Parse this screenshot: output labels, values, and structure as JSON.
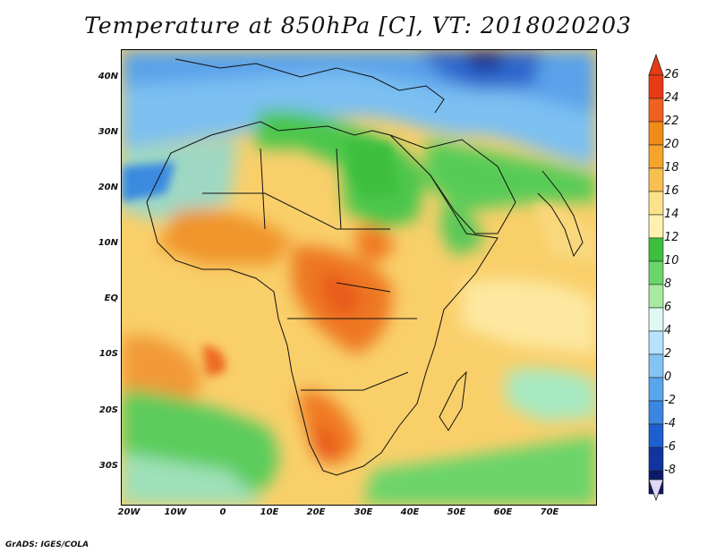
{
  "title": "Temperature at 850hPa [C], VT: 2018020203",
  "credit": "GrADS: IGES/COLA",
  "map": {
    "lat_labels": [
      "40N",
      "30N",
      "20N",
      "10N",
      "EQ",
      "10S",
      "20S",
      "30S"
    ],
    "lon_labels": [
      "20W",
      "10W",
      "0",
      "10E",
      "20E",
      "30E",
      "40E",
      "50E",
      "60E",
      "70E"
    ]
  },
  "colorbar": {
    "levels": [
      "26",
      "24",
      "22",
      "20",
      "18",
      "16",
      "14",
      "12",
      "10",
      "8",
      "6",
      "4",
      "2",
      "0",
      "-2",
      "-4",
      "-6",
      "-8"
    ],
    "colors": [
      "#e83a14",
      "#f06020",
      "#f08a18",
      "#f5a42c",
      "#f8c050",
      "#fbe28a",
      "#fff0b0",
      "#3cbf3c",
      "#6ad66a",
      "#a8eaa0",
      "#dff8f4",
      "#b6e2fb",
      "#84c4f2",
      "#58a6ec",
      "#3a86e0",
      "#1e5fd0",
      "#1234a0",
      "#0c1a6a"
    ],
    "low_arrow_color": "#e1d8f8",
    "high_arrow_color": "#e83a14"
  }
}
